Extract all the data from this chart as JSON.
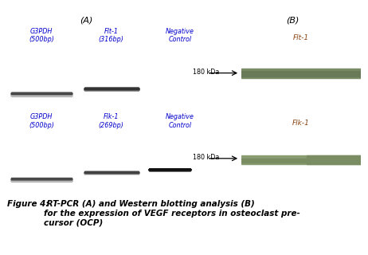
{
  "fig_width": 4.62,
  "fig_height": 3.2,
  "dpi": 100,
  "bg_color": "#ffffff",
  "panel_A_label": "(A)",
  "panel_B_label": "(B)",
  "gel1_labels": [
    "G3PDH\n(500bp)",
    "Flt-1\n(316bp)",
    "Negative\nControl"
  ],
  "gel2_labels": [
    "G3PDH\n(500bp)",
    "Flk-1\n(269bp)",
    "Negative\nControl"
  ],
  "wb1_label": "Flt-1",
  "wb2_label": "Flk-1",
  "kda_label": "180 kDa",
  "caption_bold": "Figure 4:",
  "caption_rest": " RT-PCR (A) and Western blotting analysis (B)\nfor the expression of VEGF receptors in osteoclast pre-\ncursor (OCP)",
  "caption_fontsize": 7.5,
  "label_fontsize": 5.8,
  "panel_label_fontsize": 8.0,
  "wb_label_fontsize": 6.5,
  "kda_fontsize": 5.8,
  "gel_bg": "#0a0a0a",
  "wb_bg": "#b5c09a",
  "label_color": "#0000cc",
  "wb_label_color": "#8B4513",
  "text_color": "#000000",
  "arrow_color": "#000000"
}
